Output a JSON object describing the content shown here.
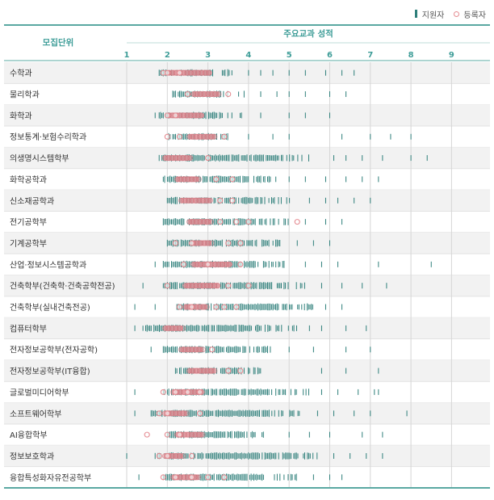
{
  "legend": {
    "applicant_label": "지원자",
    "registrant_label": "등록자"
  },
  "header": {
    "unit_label": "모집단위",
    "grade_label": "주요교과 성적"
  },
  "colors": {
    "header_text": "#3e9d98",
    "applicant": "#2e7f7a",
    "registrant_fill": "#e08f96",
    "registrant_ring": "#e58c92",
    "row_alt": "#f2f2f2",
    "rule": "#5aa8a2",
    "grid": "#d6d6d6"
  },
  "chart_data": {
    "type": "strip",
    "x_ticks": [
      "1",
      "2",
      "3",
      "4",
      "5",
      "6",
      "7",
      "8",
      "9"
    ],
    "xlim": [
      1,
      10
    ],
    "rows": [
      {
        "name": "수학과",
        "app": [
          1.8,
          3.6
        ],
        "appOut": [
          4.0,
          4.3,
          4.6,
          5.0,
          5.4,
          5.9,
          6.3,
          6.6
        ],
        "reg": [
          2.0,
          3.1
        ],
        "regOut": [
          1.9,
          2.0,
          2.3
        ]
      },
      {
        "name": "물리학과",
        "app": [
          2.1,
          3.9
        ],
        "appOut": [
          4.3,
          4.7,
          5.0,
          5.4,
          6.0,
          6.4
        ],
        "reg": [
          2.6,
          3.3
        ],
        "regOut": [
          2.5,
          3.5
        ]
      },
      {
        "name": "화학과",
        "app": [
          1.8,
          3.9
        ],
        "appOut": [
          1.7,
          4.3,
          5.0,
          5.4,
          6.0
        ],
        "reg": [
          2.0,
          2.9
        ],
        "regOut": [
          2.0,
          2.2
        ]
      },
      {
        "name": "정보통계·보험수리학과",
        "app": [
          2.0,
          3.5
        ],
        "appOut": [
          4.0,
          4.6,
          5.0,
          6.3,
          7.0,
          7.5,
          8.0
        ],
        "reg": [
          2.5,
          3.2
        ],
        "regOut": [
          2.0,
          2.3,
          3.4
        ]
      },
      {
        "name": "의생명시스템학부",
        "app": [
          1.8,
          5.6
        ],
        "appOut": [
          6.1,
          6.4,
          6.8,
          7.3,
          8.0,
          8.4
        ],
        "reg": [
          1.9,
          2.6
        ],
        "regOut": [
          3.0
        ]
      },
      {
        "name": "화학공학과",
        "app": [
          1.9,
          4.7
        ],
        "appOut": [
          5.0,
          5.4,
          5.9,
          6.4,
          6.8,
          7.2
        ],
        "reg": [
          2.2,
          2.8
        ],
        "regOut": [
          3.2,
          3.6
        ]
      },
      {
        "name": "신소재공학과",
        "app": [
          2.0,
          5.1
        ],
        "appOut": [
          5.5,
          5.9,
          6.2,
          6.6,
          7.0
        ],
        "reg": [
          2.3,
          3.1
        ],
        "regOut": [
          3.3,
          3.6
        ]
      },
      {
        "name": "전기공학부",
        "app": [
          1.9,
          5.0
        ],
        "appOut": [
          5.4,
          5.9,
          6.3
        ],
        "reg": [
          2.5,
          3.1
        ],
        "regOut": [
          3.3,
          3.7,
          4.0,
          5.2
        ]
      },
      {
        "name": "기계공학부",
        "app": [
          2.0,
          4.8
        ],
        "appOut": [
          5.2,
          5.6,
          6.0
        ],
        "reg": [
          2.6,
          3.1
        ],
        "regOut": [
          2.2,
          2.6,
          3.5,
          3.8
        ]
      },
      {
        "name": "산업·정보시스템공학과",
        "app": [
          1.9,
          4.9
        ],
        "appOut": [
          1.7,
          5.4,
          5.8,
          6.2,
          7.2,
          8.5
        ],
        "reg": [
          2.6,
          3.6
        ],
        "regOut": [
          2.4,
          3.0,
          3.8
        ]
      },
      {
        "name": "건축학부(건축학·건축공학전공)",
        "app": [
          1.9,
          5.4
        ],
        "appOut": [
          1.4,
          5.8,
          6.3,
          6.8,
          7.4
        ],
        "reg": [
          2.4,
          3.3
        ],
        "regOut": [
          2.0,
          3.5,
          4.0
        ]
      },
      {
        "name": "건축학부(실내건축전공)",
        "app": [
          2.2,
          5.6
        ],
        "appOut": [
          1.2,
          1.7,
          5.9,
          6.3
        ],
        "reg": [
          2.4,
          3.0
        ],
        "regOut": [
          2.3,
          2.6,
          3.2,
          3.4,
          3.7
        ]
      },
      {
        "name": "컴퓨터학부",
        "app": [
          1.4,
          5.3
        ],
        "appOut": [
          1.2,
          5.5,
          5.8,
          6.4,
          6.9
        ],
        "reg": [
          1.9,
          2.4
        ],
        "regOut": []
      },
      {
        "name": "전자정보공학부(전자공학)",
        "app": [
          1.9,
          4.6
        ],
        "appOut": [
          1.6,
          5.0,
          5.6,
          6.4,
          7.0
        ],
        "reg": [
          2.3,
          2.9
        ],
        "regOut": [
          3.1
        ]
      },
      {
        "name": "전자정보공학부(IT융합)",
        "app": [
          2.2,
          4.3
        ],
        "appOut": [
          5.8,
          6.4,
          7.2
        ],
        "reg": [
          2.5,
          3.2
        ],
        "regOut": [
          3.5,
          3.8
        ]
      },
      {
        "name": "글로벌미디어학부",
        "app": [
          1.9,
          5.5
        ],
        "appOut": [
          1.2,
          5.8,
          6.2,
          6.7,
          7.1,
          7.2
        ],
        "reg": [
          2.1,
          2.9
        ],
        "regOut": [
          1.9,
          2.2,
          2.5,
          2.8
        ]
      },
      {
        "name": "소프트웨어학부",
        "app": [
          1.6,
          5.4
        ],
        "appOut": [
          1.2,
          5.7,
          6.1,
          6.6,
          7.0,
          7.9
        ],
        "reg": [
          1.9,
          2.5
        ],
        "regOut": [
          1.8,
          2.0,
          2.8
        ]
      },
      {
        "name": "AI융합학부",
        "app": [
          2.0,
          4.4
        ],
        "appOut": [
          5.0,
          5.5,
          6.0,
          6.8,
          7.3
        ],
        "reg": [
          2.2,
          2.9
        ],
        "regOut": [
          1.5,
          2.0,
          2.3
        ]
      },
      {
        "name": "정보보호학과",
        "app": [
          1.7,
          5.7
        ],
        "appOut": [
          1.0,
          6.1,
          6.5,
          6.9,
          7.3
        ],
        "reg": [
          1.9,
          2.4
        ],
        "regOut": [
          1.8,
          2.0,
          2.6
        ]
      },
      {
        "name": "융합특성화자유전공학부",
        "app": [
          1.9,
          5.2
        ],
        "appOut": [
          1.3,
          5.6,
          6.0,
          6.3
        ],
        "reg": [
          2.1,
          2.8
        ],
        "regOut": [
          1.9,
          2.2,
          2.6,
          3.0,
          3.4
        ]
      }
    ]
  }
}
